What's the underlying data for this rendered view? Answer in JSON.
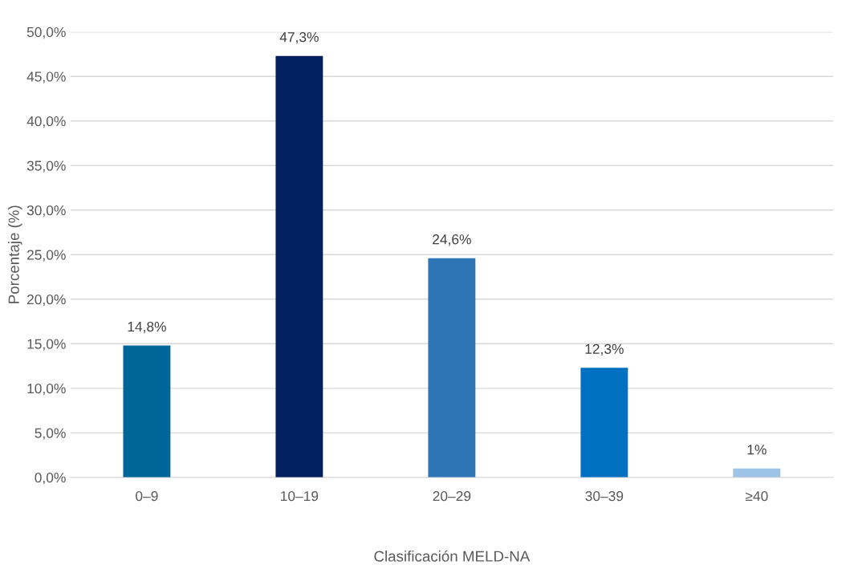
{
  "chart_data": {
    "type": "bar",
    "xlabel": "Clasificación MELD-NA",
    "ylabel": "Porcentaje (%)",
    "categories": [
      "0–9",
      "10–19",
      "20–29",
      "30–39",
      "≥40"
    ],
    "values": [
      14.8,
      47.3,
      24.6,
      12.3,
      1
    ],
    "colors": [
      "#006699",
      "#002060",
      "#2e75b6",
      "#0070c0",
      "#9dc3e6"
    ],
    "value_labels": [
      "14,8%",
      "47,3%",
      "24,6%",
      "12,3%",
      "1%"
    ],
    "ylim": [
      0,
      50
    ],
    "yticks": [
      {
        "value": 0,
        "label": "0,0%"
      },
      {
        "value": 5,
        "label": "5,0%"
      },
      {
        "value": 10,
        "label": "10,0%"
      },
      {
        "value": 15,
        "label": "15,0%"
      },
      {
        "value": 20,
        "label": "20,0%"
      },
      {
        "value": 25,
        "label": "25,0%"
      },
      {
        "value": 30,
        "label": "30,0%"
      },
      {
        "value": 35,
        "label": "35,0%"
      },
      {
        "value": 40,
        "label": "40,0%"
      },
      {
        "value": 45,
        "label": "45,0%"
      },
      {
        "value": 50,
        "label": "50,0%"
      }
    ],
    "grid": "y",
    "legend": false
  }
}
